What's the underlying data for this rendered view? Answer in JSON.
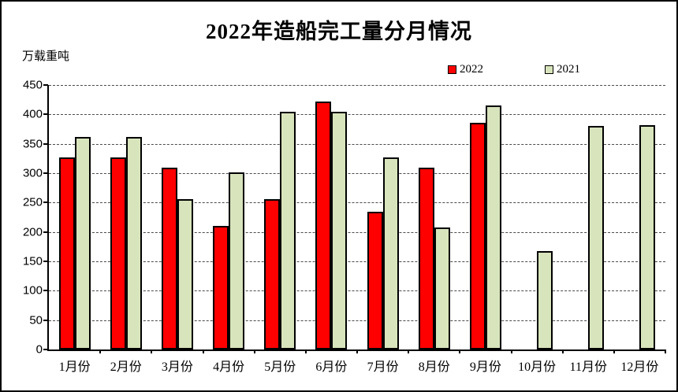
{
  "title": "2022年造船完工量分月情况",
  "unit_label": "万载重吨",
  "legend": {
    "items": [
      {
        "label": "2022",
        "color": "#FF0000"
      },
      {
        "label": "2021",
        "color": "#D8E4BC"
      }
    ]
  },
  "colors": {
    "series_2022": "#FF0000",
    "series_2021": "#D8E4BC",
    "bar_border": "#000000",
    "gridline": "#4a4a4a",
    "axis": "#000000"
  },
  "chart_data": {
    "type": "bar",
    "title": "2022年造船完工量分月情况",
    "xlabel": "",
    "ylabel": "万载重吨",
    "categories": [
      "1月份",
      "2月份",
      "3月份",
      "4月份",
      "5月份",
      "6月份",
      "7月份",
      "8月份",
      "9月份",
      "10月份",
      "11月份",
      "12月份"
    ],
    "series": [
      {
        "name": "2022",
        "color": "#FF0000",
        "values": [
          327,
          327,
          309,
          210,
          256,
          422,
          235,
          309,
          386,
          null,
          null,
          null
        ]
      },
      {
        "name": "2021",
        "color": "#D8E4BC",
        "values": [
          362,
          362,
          256,
          302,
          405,
          405,
          327,
          207,
          415,
          167,
          381,
          382
        ]
      }
    ],
    "ylim": [
      0,
      450
    ],
    "yticks": [
      0,
      50,
      100,
      150,
      200,
      250,
      300,
      350,
      400,
      450
    ],
    "grid": "horizontal-dashed",
    "legend_position": "top-right"
  }
}
